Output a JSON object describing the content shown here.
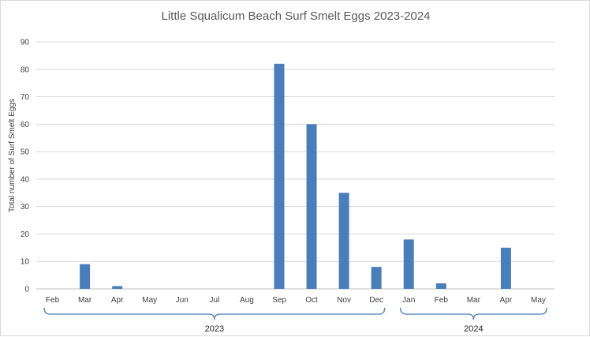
{
  "chart_data": {
    "type": "bar",
    "title": "Little Squalicum Beach Surf Smelt Eggs 2023-2024",
    "xlabel": "",
    "ylabel": "Total number of Surf Smelt Eggs",
    "ylim": [
      0,
      90
    ],
    "yticks": [
      0,
      10,
      20,
      30,
      40,
      50,
      60,
      70,
      80,
      90
    ],
    "grid": true,
    "categories": [
      "Feb",
      "Mar",
      "Apr",
      "May",
      "Jun",
      "Jul",
      "Aug",
      "Sep",
      "Oct",
      "Nov",
      "Dec",
      "Jan",
      "Feb",
      "Mar",
      "Apr",
      "May"
    ],
    "values": [
      0,
      9,
      1,
      0,
      0,
      0,
      0,
      82,
      60,
      35,
      8,
      18,
      2,
      0,
      15,
      0
    ],
    "groups": [
      {
        "label": "2023",
        "from": 0,
        "to": 10
      },
      {
        "label": "2024",
        "from": 11,
        "to": 15
      }
    ],
    "colors": {
      "bar": "#4a7ebb",
      "grid": "#d9d9d9",
      "axis": "#bfbfbf",
      "brace": "#4a7ebb"
    }
  }
}
